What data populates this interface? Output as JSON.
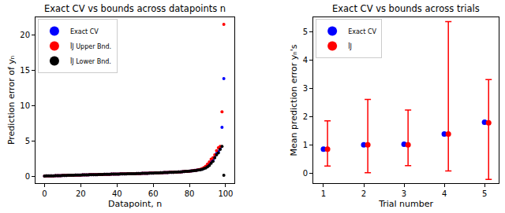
{
  "chart_data": [
    {
      "type": "scatter",
      "title": "Exact CV vs bounds across datapoints n",
      "x_label": "Datapoint, n",
      "y_label": "Prediction error of yₙ",
      "xlim": [
        -5,
        105
      ],
      "ylim": [
        -1,
        22.5
      ],
      "xticks": [
        0,
        20,
        40,
        60,
        80,
        100
      ],
      "yticks": [
        0,
        5,
        10,
        15,
        20
      ],
      "grid": false,
      "legend": "upper left",
      "x": [
        0,
        1,
        2,
        3,
        4,
        5,
        6,
        7,
        8,
        9,
        10,
        11,
        12,
        13,
        14,
        15,
        16,
        17,
        18,
        19,
        20,
        21,
        22,
        23,
        24,
        25,
        26,
        27,
        28,
        29,
        30,
        31,
        32,
        33,
        34,
        35,
        36,
        37,
        38,
        39,
        40,
        41,
        42,
        43,
        44,
        45,
        46,
        47,
        48,
        49,
        50,
        51,
        52,
        53,
        54,
        55,
        56,
        57,
        58,
        59,
        60,
        61,
        62,
        63,
        64,
        65,
        66,
        67,
        68,
        69,
        70,
        71,
        72,
        73,
        74,
        75,
        76,
        77,
        78,
        79,
        80,
        81,
        82,
        83,
        84,
        85,
        86,
        87,
        88,
        89,
        90,
        91,
        92,
        93,
        94,
        95,
        96,
        97,
        98,
        99
      ],
      "series": [
        {
          "name": "Exact CV",
          "color": "#0000ff",
          "marker": "circle",
          "values": [
            0.01,
            0.02,
            0.02,
            0.03,
            0.03,
            0.04,
            0.05,
            0.05,
            0.06,
            0.07,
            0.08,
            0.08,
            0.09,
            0.1,
            0.11,
            0.11,
            0.12,
            0.13,
            0.14,
            0.14,
            0.15,
            0.16,
            0.17,
            0.17,
            0.18,
            0.19,
            0.19,
            0.2,
            0.21,
            0.21,
            0.22,
            0.23,
            0.23,
            0.24,
            0.25,
            0.25,
            0.26,
            0.27,
            0.27,
            0.28,
            0.29,
            0.29,
            0.3,
            0.31,
            0.31,
            0.32,
            0.33,
            0.33,
            0.34,
            0.35,
            0.35,
            0.36,
            0.37,
            0.37,
            0.38,
            0.39,
            0.4,
            0.4,
            0.41,
            0.42,
            0.43,
            0.44,
            0.45,
            0.46,
            0.47,
            0.48,
            0.49,
            0.5,
            0.51,
            0.52,
            0.53,
            0.54,
            0.55,
            0.57,
            0.58,
            0.6,
            0.62,
            0.64,
            0.66,
            0.68,
            0.7,
            0.73,
            0.76,
            0.8,
            0.84,
            0.88,
            0.93,
            1.0,
            1.1,
            1.25,
            1.45,
            1.7,
            2.0,
            2.3,
            2.7,
            3.2,
            3.5,
            3.9,
            6.9,
            13.8
          ]
        },
        {
          "name": "ĨJ Upper Bnd.",
          "color": "#ff0000",
          "marker": "circle",
          "values": [
            0.01,
            0.02,
            0.02,
            0.03,
            0.03,
            0.04,
            0.05,
            0.05,
            0.06,
            0.07,
            0.08,
            0.08,
            0.09,
            0.1,
            0.11,
            0.11,
            0.12,
            0.13,
            0.14,
            0.14,
            0.15,
            0.16,
            0.17,
            0.17,
            0.18,
            0.19,
            0.19,
            0.2,
            0.21,
            0.21,
            0.22,
            0.23,
            0.23,
            0.24,
            0.25,
            0.25,
            0.26,
            0.27,
            0.27,
            0.28,
            0.29,
            0.29,
            0.3,
            0.31,
            0.31,
            0.32,
            0.33,
            0.33,
            0.34,
            0.35,
            0.35,
            0.36,
            0.37,
            0.37,
            0.38,
            0.39,
            0.4,
            0.4,
            0.41,
            0.42,
            0.43,
            0.44,
            0.45,
            0.46,
            0.47,
            0.48,
            0.49,
            0.5,
            0.51,
            0.52,
            0.53,
            0.54,
            0.55,
            0.57,
            0.58,
            0.6,
            0.62,
            0.64,
            0.66,
            0.68,
            0.7,
            0.73,
            0.76,
            0.8,
            0.85,
            0.89,
            0.95,
            1.05,
            1.2,
            1.4,
            1.7,
            2.0,
            2.4,
            2.6,
            3.0,
            3.6,
            4.0,
            4.2,
            9.1,
            21.5
          ]
        },
        {
          "name": "ĨJ Lower Bnd.",
          "color": "#000000",
          "marker": "circle",
          "values": [
            0.01,
            0.02,
            0.02,
            0.03,
            0.03,
            0.04,
            0.05,
            0.05,
            0.06,
            0.07,
            0.08,
            0.08,
            0.09,
            0.1,
            0.11,
            0.11,
            0.12,
            0.13,
            0.14,
            0.14,
            0.15,
            0.16,
            0.17,
            0.17,
            0.18,
            0.19,
            0.19,
            0.2,
            0.21,
            0.21,
            0.22,
            0.23,
            0.23,
            0.24,
            0.25,
            0.25,
            0.26,
            0.27,
            0.27,
            0.28,
            0.29,
            0.29,
            0.3,
            0.31,
            0.31,
            0.32,
            0.33,
            0.33,
            0.34,
            0.35,
            0.35,
            0.36,
            0.37,
            0.37,
            0.38,
            0.39,
            0.4,
            0.4,
            0.41,
            0.42,
            0.43,
            0.44,
            0.45,
            0.46,
            0.47,
            0.48,
            0.49,
            0.5,
            0.51,
            0.52,
            0.53,
            0.54,
            0.55,
            0.57,
            0.58,
            0.6,
            0.62,
            0.64,
            0.66,
            0.68,
            0.7,
            0.72,
            0.75,
            0.79,
            0.82,
            0.86,
            0.9,
            0.96,
            1.05,
            1.15,
            1.3,
            1.5,
            1.8,
            2.1,
            2.6,
            3.0,
            3.3,
            3.8,
            4.2,
            0.1
          ]
        }
      ]
    },
    {
      "type": "scatter",
      "title": "Exact CV vs bounds across trials",
      "x_label": "Trial number",
      "y_label": "Mean prediction error yₙ's",
      "xlim": [
        0.75,
        5.35
      ],
      "ylim": [
        -0.35,
        5.5
      ],
      "xticks": [
        1,
        2,
        3,
        4,
        5
      ],
      "yticks": [
        0,
        1,
        2,
        3,
        4,
        5
      ],
      "grid": false,
      "legend": "upper left",
      "series": [
        {
          "name": "Exact CV",
          "color": "#0000ff",
          "marker": "circle",
          "x": [
            1,
            2,
            3,
            4,
            5
          ],
          "values": [
            0.85,
            1.0,
            1.02,
            1.38,
            1.8
          ]
        },
        {
          "name": "ĨJ",
          "color": "#ff0000",
          "marker": "circle",
          "x": [
            1.1,
            2.1,
            3.1,
            4.1,
            5.1
          ],
          "values": [
            0.85,
            1.0,
            1.0,
            1.38,
            1.78
          ],
          "error_lower": [
            0.25,
            0.02,
            0.27,
            0.08,
            -0.22
          ],
          "error_upper": [
            1.85,
            2.6,
            2.23,
            5.35,
            3.3
          ]
        }
      ]
    }
  ]
}
